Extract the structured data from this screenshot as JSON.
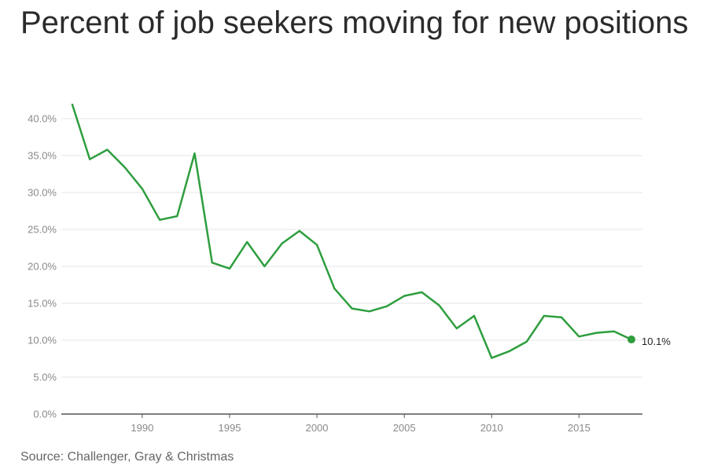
{
  "title": "Percent of job seekers moving for new positions",
  "source": "Source: Challenger, Gray & Christmas",
  "colors": {
    "line": "#2e9e3e",
    "grid": "#e5e5e5",
    "axis": "#555555"
  },
  "chart_data": {
    "type": "line",
    "title": "Percent of job seekers moving for new positions",
    "xlabel": "",
    "ylabel": "",
    "xlim": [
      1986,
      2018
    ],
    "ylim": [
      0,
      40
    ],
    "x_ticks": [
      1990,
      1995,
      2000,
      2005,
      2010,
      2015
    ],
    "y_ticks": [
      {
        "value": 0,
        "label": "0.0%"
      },
      {
        "value": 5,
        "label": "5.0%"
      },
      {
        "value": 10,
        "label": "10.0%"
      },
      {
        "value": 15,
        "label": "15.0%"
      },
      {
        "value": 20,
        "label": "20.0%"
      },
      {
        "value": 25,
        "label": "25.0%"
      },
      {
        "value": 30,
        "label": "30.0%"
      },
      {
        "value": 35,
        "label": "35.0%"
      },
      {
        "value": 40,
        "label": "40.0%"
      }
    ],
    "grid": true,
    "series": [
      {
        "x": [
          1986,
          1987,
          1988,
          1989,
          1990,
          1991,
          1992,
          1993,
          1994,
          1995,
          1996,
          1997,
          1998,
          1999,
          2000,
          2001,
          2002,
          2003,
          2004,
          2005,
          2006,
          2007,
          2008,
          2009,
          2010,
          2011,
          2012,
          2013,
          2014,
          2015,
          2016,
          2017,
          2018
        ],
        "values": [
          41.9,
          34.5,
          35.8,
          33.4,
          30.5,
          26.3,
          26.8,
          35.3,
          20.5,
          19.7,
          23.3,
          20.0,
          23.1,
          24.8,
          22.9,
          17.0,
          14.3,
          13.9,
          14.6,
          16.0,
          16.5,
          14.7,
          11.6,
          13.3,
          7.6,
          8.5,
          9.8,
          13.3,
          13.1,
          10.5,
          11.0,
          11.2,
          10.1
        ]
      }
    ],
    "end_label": "10.1%"
  }
}
